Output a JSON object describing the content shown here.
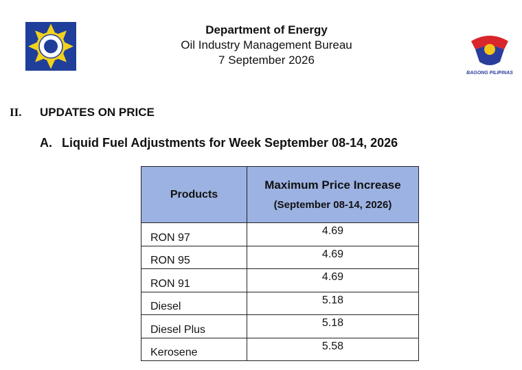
{
  "header": {
    "title": "Department of Energy",
    "bureau": "Oil Industry Management Bureau",
    "date": "7 September 2026",
    "logo_text": "BAGONG PILIPINAS"
  },
  "section": {
    "number": "II.",
    "title": "UPDATES ON PRICE"
  },
  "subsection": {
    "letter": "A.",
    "title": "Liquid Fuel Adjustments for Week September 08-14, 2026"
  },
  "table": {
    "headers": [
      "Products",
      "Maximum Price Increase"
    ],
    "header_subtitle": "(September 08-14, 2026)",
    "rows": [
      [
        "RON 97",
        "4.69"
      ],
      [
        "RON 95",
        "4.69"
      ],
      [
        "RON 91",
        "4.69"
      ],
      [
        "Diesel",
        "5.18"
      ],
      [
        "Diesel Plus",
        "5.18"
      ],
      [
        "Kerosene",
        "5.58"
      ]
    ]
  }
}
